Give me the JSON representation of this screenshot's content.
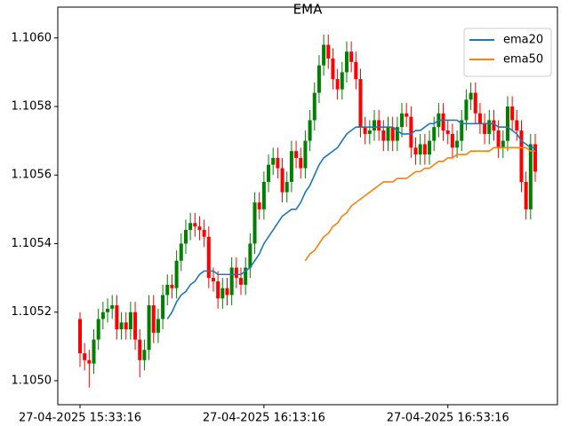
{
  "chart_data": {
    "type": "candlestick",
    "title": "EMA",
    "categories": [
      "27-04-2025 15:33:16",
      null,
      null,
      null,
      null,
      null,
      null,
      null,
      null,
      null,
      null,
      null,
      null,
      null,
      null,
      null,
      null,
      null,
      null,
      null,
      null,
      null,
      null,
      null,
      null,
      null,
      null,
      null,
      null,
      null,
      null,
      null,
      null,
      null,
      null,
      null,
      null,
      null,
      null,
      null,
      "27-04-2025 16:13:16",
      null,
      null,
      null,
      null,
      null,
      null,
      null,
      null,
      null,
      null,
      null,
      null,
      null,
      null,
      null,
      null,
      null,
      null,
      null,
      null,
      null,
      null,
      null,
      null,
      null,
      null,
      null,
      null,
      null,
      null,
      null,
      null,
      null,
      null,
      null,
      null,
      null,
      null,
      null,
      "27-04-2025 16:53:16",
      null,
      null,
      null,
      null,
      null,
      null,
      null,
      null,
      null,
      null,
      null,
      null,
      null,
      null,
      null,
      null,
      null,
      null,
      null
    ],
    "open": [
      1.10518,
      1.10508,
      1.10506,
      1.10505,
      1.10512,
      1.10518,
      1.1052,
      1.10521,
      1.10522,
      1.10515,
      1.10517,
      1.10515,
      1.1052,
      1.10512,
      1.10506,
      1.10509,
      1.10522,
      1.10514,
      1.10518,
      1.10525,
      1.10528,
      1.10527,
      1.10535,
      1.1054,
      1.10544,
      1.10546,
      1.10545,
      1.10544,
      1.10542,
      1.1053,
      1.10529,
      1.10524,
      1.10527,
      1.10525,
      1.10533,
      1.1053,
      1.10528,
      1.10533,
      1.1054,
      1.10552,
      1.1055,
      1.10558,
      1.10563,
      1.10565,
      1.10562,
      1.10555,
      1.10558,
      1.10567,
      1.10565,
      1.10562,
      1.1057,
      1.10576,
      1.10584,
      1.10592,
      1.10598,
      1.10594,
      1.10588,
      1.10585,
      1.1059,
      1.10596,
      1.10593,
      1.10588,
      1.10574,
      1.10572,
      1.10573,
      1.10576,
      1.10573,
      1.1057,
      1.10574,
      1.1057,
      1.10574,
      1.10578,
      1.10577,
      1.10568,
      1.10566,
      1.10569,
      1.10566,
      1.1057,
      1.10574,
      1.10578,
      1.10573,
      1.10572,
      1.10568,
      1.1057,
      1.10576,
      1.10582,
      1.10584,
      1.10578,
      1.10575,
      1.10572,
      1.10576,
      1.10573,
      1.10568,
      1.1057,
      1.1058,
      1.10576,
      1.10573,
      1.10558,
      1.1055,
      1.10569
    ],
    "high": [
      1.1052,
      1.10511,
      1.10509,
      1.10515,
      1.10521,
      1.10523,
      1.10524,
      1.10525,
      1.10525,
      1.1052,
      1.1052,
      1.10523,
      1.10523,
      1.10515,
      1.10512,
      1.10525,
      1.10525,
      1.10521,
      1.10528,
      1.10531,
      1.10531,
      1.10538,
      1.10543,
      1.10547,
      1.10549,
      1.10549,
      1.10548,
      1.10547,
      1.10545,
      1.10533,
      1.10532,
      1.1053,
      1.1053,
      1.10536,
      1.10536,
      1.10533,
      1.10536,
      1.10543,
      1.10555,
      1.10555,
      1.10561,
      1.10566,
      1.10568,
      1.10568,
      1.10565,
      1.10561,
      1.1057,
      1.1057,
      1.10568,
      1.10573,
      1.10579,
      1.10587,
      1.10595,
      1.10601,
      1.10601,
      1.10597,
      1.10591,
      1.10593,
      1.10599,
      1.10599,
      1.10596,
      1.10591,
      1.10577,
      1.10576,
      1.10579,
      1.10579,
      1.10576,
      1.10577,
      1.10577,
      1.10577,
      1.10581,
      1.10581,
      1.1058,
      1.10571,
      1.10572,
      1.10572,
      1.10573,
      1.10577,
      1.10581,
      1.10581,
      1.10576,
      1.10575,
      1.10573,
      1.10579,
      1.10585,
      1.10587,
      1.10587,
      1.10581,
      1.10578,
      1.10579,
      1.10579,
      1.10576,
      1.10573,
      1.10583,
      1.10583,
      1.10579,
      1.10576,
      1.10561,
      1.10572,
      1.10572
    ],
    "low": [
      1.10504,
      1.10503,
      1.10498,
      1.10502,
      1.10509,
      1.10515,
      1.10517,
      1.10518,
      1.10512,
      1.10512,
      1.10512,
      1.10512,
      1.10509,
      1.10501,
      1.10503,
      1.10506,
      1.10511,
      1.10511,
      1.10515,
      1.10522,
      1.10524,
      1.10524,
      1.10532,
      1.10537,
      1.10541,
      1.10542,
      1.10541,
      1.10539,
      1.10527,
      1.10526,
      1.10521,
      1.10521,
      1.10522,
      1.10522,
      1.10527,
      1.10525,
      1.10525,
      1.1053,
      1.10537,
      1.10547,
      1.10547,
      1.10555,
      1.1056,
      1.10559,
      1.10552,
      1.10552,
      1.10555,
      1.10562,
      1.10559,
      1.10559,
      1.10567,
      1.10573,
      1.10581,
      1.10589,
      1.10591,
      1.10585,
      1.10582,
      1.10582,
      1.10587,
      1.1059,
      1.10585,
      1.10571,
      1.10569,
      1.10569,
      1.1057,
      1.1057,
      1.10567,
      1.10567,
      1.10567,
      1.10567,
      1.10571,
      1.10574,
      1.10565,
      1.10563,
      1.10563,
      1.10563,
      1.10563,
      1.10567,
      1.10571,
      1.1057,
      1.10569,
      1.10565,
      1.10565,
      1.10567,
      1.10573,
      1.10579,
      1.10575,
      1.10572,
      1.10569,
      1.10569,
      1.1057,
      1.10565,
      1.10565,
      1.10567,
      1.10573,
      1.1057,
      1.10555,
      1.10547,
      1.10547,
      1.10558
    ],
    "close": [
      1.10508,
      1.10506,
      1.10505,
      1.10512,
      1.10518,
      1.1052,
      1.10521,
      1.10522,
      1.10515,
      1.10517,
      1.10515,
      1.1052,
      1.10512,
      1.10506,
      1.10509,
      1.10522,
      1.10514,
      1.10518,
      1.10525,
      1.10528,
      1.10527,
      1.10535,
      1.1054,
      1.10544,
      1.10546,
      1.10545,
      1.10544,
      1.10542,
      1.1053,
      1.10529,
      1.10524,
      1.10527,
      1.10525,
      1.10533,
      1.1053,
      1.10528,
      1.10533,
      1.1054,
      1.10552,
      1.1055,
      1.10558,
      1.10563,
      1.10565,
      1.10562,
      1.10555,
      1.10558,
      1.10567,
      1.10565,
      1.10562,
      1.1057,
      1.10576,
      1.10584,
      1.10592,
      1.10598,
      1.10594,
      1.10588,
      1.10585,
      1.1059,
      1.10596,
      1.10593,
      1.10588,
      1.10574,
      1.10572,
      1.10573,
      1.10576,
      1.10573,
      1.1057,
      1.10574,
      1.1057,
      1.10574,
      1.10578,
      1.10577,
      1.10568,
      1.10566,
      1.10569,
      1.10566,
      1.1057,
      1.10574,
      1.10578,
      1.10573,
      1.10572,
      1.10568,
      1.1057,
      1.10576,
      1.10582,
      1.10584,
      1.10578,
      1.10575,
      1.10572,
      1.10576,
      1.10573,
      1.10568,
      1.1057,
      1.1058,
      1.10576,
      1.10573,
      1.10558,
      1.1055,
      1.10569,
      1.10561
    ],
    "up_color": "#008000",
    "down_color": "#ff0000",
    "series": [
      {
        "name": "ema20",
        "color": "#1f77b4",
        "values": [
          null,
          null,
          null,
          null,
          null,
          null,
          null,
          null,
          null,
          null,
          null,
          null,
          null,
          null,
          null,
          null,
          null,
          null,
          null,
          1.10518,
          1.1052,
          1.10523,
          1.10525,
          1.10526,
          1.10528,
          1.10529,
          1.10531,
          1.10532,
          1.10532,
          1.10532,
          1.10531,
          1.10531,
          1.10531,
          1.10531,
          1.10531,
          1.10531,
          1.10532,
          1.10533,
          1.10535,
          1.10537,
          1.1054,
          1.10542,
          1.10544,
          1.10546,
          1.10548,
          1.10549,
          1.1055,
          1.1055,
          1.10552,
          1.10555,
          1.10557,
          1.1056,
          1.10563,
          1.10565,
          1.10566,
          1.10567,
          1.10568,
          1.1057,
          1.10572,
          1.10573,
          1.10574,
          1.10574,
          1.10574,
          1.10574,
          1.10574,
          1.10574,
          1.10574,
          1.10574,
          1.10574,
          1.10573,
          1.10572,
          1.10572,
          1.10572,
          1.10573,
          1.10573,
          1.10574,
          1.10575,
          1.10575,
          1.10576,
          1.10576,
          1.10576,
          1.10576,
          1.10576,
          1.10575,
          1.10575,
          1.10575,
          1.10575,
          1.10575,
          1.10575,
          1.10575,
          1.10575,
          1.10574,
          1.10574,
          1.10574,
          1.10573,
          1.10572,
          1.1057,
          1.10569,
          1.10568,
          1.10568
        ]
      },
      {
        "name": "ema50",
        "color": "#ff7f0e",
        "values": [
          null,
          null,
          null,
          null,
          null,
          null,
          null,
          null,
          null,
          null,
          null,
          null,
          null,
          null,
          null,
          null,
          null,
          null,
          null,
          null,
          null,
          null,
          null,
          null,
          null,
          null,
          null,
          null,
          null,
          null,
          null,
          null,
          null,
          null,
          null,
          null,
          null,
          null,
          null,
          null,
          null,
          null,
          null,
          null,
          null,
          null,
          null,
          null,
          null,
          1.10535,
          1.10537,
          1.10538,
          1.1054,
          1.10542,
          1.10543,
          1.10545,
          1.10546,
          1.10548,
          1.10549,
          1.10551,
          1.10552,
          1.10553,
          1.10554,
          1.10555,
          1.10556,
          1.10557,
          1.10558,
          1.10558,
          1.10558,
          1.10559,
          1.10559,
          1.10559,
          1.1056,
          1.10561,
          1.10561,
          1.10562,
          1.10562,
          1.10563,
          1.10564,
          1.10564,
          1.10565,
          1.10565,
          1.10566,
          1.10566,
          1.10566,
          1.10567,
          1.10567,
          1.10567,
          1.10567,
          1.10567,
          1.10568,
          1.10568,
          1.10568,
          1.10568,
          1.10568,
          1.10568,
          1.10568,
          1.10568,
          1.10567,
          1.10567
        ]
      }
    ],
    "ylim": [
      1.10493,
      1.10609
    ],
    "yticks": [
      {
        "value": 1.105,
        "label": "1.1050"
      },
      {
        "value": 1.1052,
        "label": "1.1052"
      },
      {
        "value": 1.1054,
        "label": "1.1054"
      },
      {
        "value": 1.1056,
        "label": "1.1056"
      },
      {
        "value": 1.1058,
        "label": "1.1058"
      },
      {
        "value": 1.106,
        "label": "1.1060"
      }
    ],
    "legend": "upper right"
  }
}
